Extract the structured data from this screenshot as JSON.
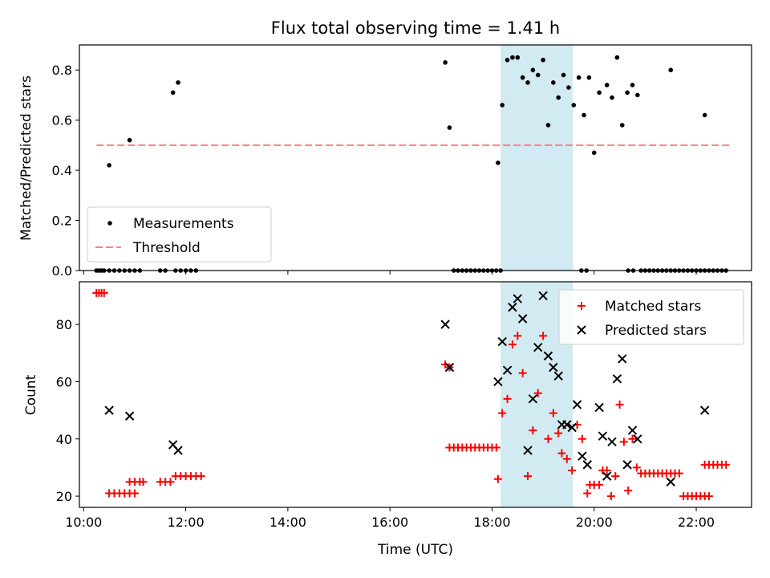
{
  "title": "Flux total observing time = 1.41 h",
  "colors": {
    "highlight": "#add8e6",
    "threshold": "#ff7f7f",
    "measurements": "#000000",
    "matched": "#ff0000",
    "predicted": "#000000"
  },
  "chart_data": [
    {
      "type": "scatter",
      "ylabel": "Matched/Predicted stars",
      "xlim": [
        "09:55",
        "23:05"
      ],
      "ylim": [
        0,
        0.9
      ],
      "yticks": [
        "0.0",
        "0.2",
        "0.4",
        "0.6",
        "0.8"
      ],
      "highlight_span": [
        "18:10",
        "19:35"
      ],
      "legend": {
        "position": "lower-left",
        "entries": [
          "Measurements",
          "Threshold"
        ]
      },
      "threshold": {
        "name": "Threshold",
        "value": 0.5,
        "x_range": [
          "10:15",
          "22:40"
        ]
      },
      "series": [
        {
          "name": "Measurements",
          "points": [
            [
              "10:15",
              0
            ],
            [
              "10:18",
              0
            ],
            [
              "10:21",
              0
            ],
            [
              "10:24",
              0
            ],
            [
              "10:30",
              0
            ],
            [
              "10:36",
              0
            ],
            [
              "10:42",
              0
            ],
            [
              "10:48",
              0
            ],
            [
              "10:54",
              0
            ],
            [
              "11:00",
              0
            ],
            [
              "11:06",
              0
            ],
            [
              "11:30",
              0
            ],
            [
              "11:36",
              0
            ],
            [
              "11:48",
              0
            ],
            [
              "11:54",
              0
            ],
            [
              "12:00",
              0
            ],
            [
              "12:06",
              0
            ],
            [
              "12:12",
              0
            ],
            [
              "10:30",
              0.42
            ],
            [
              "10:54",
              0.52
            ],
            [
              "11:45",
              0.71
            ],
            [
              "11:51",
              0.75
            ],
            [
              "17:05",
              0.83
            ],
            [
              "17:10",
              0.57
            ],
            [
              "17:15",
              0
            ],
            [
              "17:20",
              0
            ],
            [
              "17:25",
              0
            ],
            [
              "17:30",
              0
            ],
            [
              "17:35",
              0
            ],
            [
              "17:40",
              0
            ],
            [
              "17:45",
              0
            ],
            [
              "17:50",
              0
            ],
            [
              "17:55",
              0
            ],
            [
              "18:00",
              0
            ],
            [
              "18:05",
              0
            ],
            [
              "18:10",
              0
            ],
            [
              "18:07",
              0.43
            ],
            [
              "18:12",
              0.66
            ],
            [
              "18:18",
              0.84
            ],
            [
              "18:24",
              0.85
            ],
            [
              "18:30",
              0.85
            ],
            [
              "18:36",
              0.77
            ],
            [
              "18:42",
              0.75
            ],
            [
              "18:48",
              0.8
            ],
            [
              "18:54",
              0.78
            ],
            [
              "19:00",
              0.84
            ],
            [
              "19:06",
              0.58
            ],
            [
              "19:12",
              0.75
            ],
            [
              "19:18",
              0.69
            ],
            [
              "19:24",
              0.78
            ],
            [
              "19:30",
              0.73
            ],
            [
              "19:36",
              0.66
            ],
            [
              "19:42",
              0.77
            ],
            [
              "19:48",
              0.62
            ],
            [
              "19:54",
              0.77
            ],
            [
              "19:45",
              0
            ],
            [
              "19:51",
              0
            ],
            [
              "20:00",
              0.47
            ],
            [
              "20:06",
              0.71
            ],
            [
              "20:15",
              0.74
            ],
            [
              "20:21",
              0.69
            ],
            [
              "20:27",
              0.85
            ],
            [
              "20:33",
              0.58
            ],
            [
              "20:39",
              0.71
            ],
            [
              "20:45",
              0.74
            ],
            [
              "20:51",
              0.7
            ],
            [
              "20:40",
              0
            ],
            [
              "20:46",
              0
            ],
            [
              "20:55",
              0
            ],
            [
              "21:00",
              0
            ],
            [
              "21:05",
              0
            ],
            [
              "21:10",
              0
            ],
            [
              "21:15",
              0
            ],
            [
              "21:20",
              0
            ],
            [
              "21:25",
              0
            ],
            [
              "21:30",
              0
            ],
            [
              "21:35",
              0
            ],
            [
              "21:40",
              0
            ],
            [
              "21:45",
              0
            ],
            [
              "21:50",
              0
            ],
            [
              "21:55",
              0
            ],
            [
              "22:00",
              0
            ],
            [
              "22:05",
              0
            ],
            [
              "22:10",
              0
            ],
            [
              "22:15",
              0
            ],
            [
              "22:20",
              0
            ],
            [
              "22:25",
              0
            ],
            [
              "22:30",
              0
            ],
            [
              "22:35",
              0
            ],
            [
              "21:30",
              0.8
            ],
            [
              "22:10",
              0.62
            ]
          ]
        }
      ]
    },
    {
      "type": "scatter",
      "xlabel": "Time (UTC)",
      "ylabel": "Count",
      "xlim": [
        "09:55",
        "23:05"
      ],
      "ylim": [
        16.1,
        94.9
      ],
      "xticks": [
        "10:00",
        "12:00",
        "14:00",
        "16:00",
        "18:00",
        "20:00",
        "22:00"
      ],
      "yticks": [
        "20",
        "40",
        "60",
        "80"
      ],
      "highlight_span": [
        "18:10",
        "19:35"
      ],
      "legend": {
        "position": "top-right",
        "entries": [
          "Matched stars",
          "Predicted stars"
        ]
      },
      "series": [
        {
          "name": "Matched stars",
          "marker": "plus",
          "points": [
            [
              "10:15",
              91
            ],
            [
              "10:18",
              91
            ],
            [
              "10:21",
              91
            ],
            [
              "10:24",
              91
            ],
            [
              "10:30",
              21
            ],
            [
              "10:36",
              21
            ],
            [
              "10:42",
              21
            ],
            [
              "10:48",
              21
            ],
            [
              "10:54",
              21
            ],
            [
              "11:00",
              21
            ],
            [
              "10:54",
              25
            ],
            [
              "11:00",
              25
            ],
            [
              "11:06",
              25
            ],
            [
              "11:10",
              25
            ],
            [
              "11:30",
              25
            ],
            [
              "11:36",
              25
            ],
            [
              "11:42",
              25
            ],
            [
              "11:48",
              27
            ],
            [
              "11:54",
              27
            ],
            [
              "12:00",
              27
            ],
            [
              "12:06",
              27
            ],
            [
              "12:12",
              27
            ],
            [
              "12:18",
              27
            ],
            [
              "17:05",
              66
            ],
            [
              "17:10",
              65
            ],
            [
              "17:10",
              37
            ],
            [
              "17:15",
              37
            ],
            [
              "17:20",
              37
            ],
            [
              "17:25",
              37
            ],
            [
              "17:30",
              37
            ],
            [
              "17:35",
              37
            ],
            [
              "17:40",
              37
            ],
            [
              "17:45",
              37
            ],
            [
              "17:50",
              37
            ],
            [
              "17:55",
              37
            ],
            [
              "18:00",
              37
            ],
            [
              "18:05",
              37
            ],
            [
              "18:07",
              26
            ],
            [
              "18:12",
              49
            ],
            [
              "18:18",
              54
            ],
            [
              "18:24",
              73
            ],
            [
              "18:30",
              76
            ],
            [
              "18:36",
              63
            ],
            [
              "18:42",
              27
            ],
            [
              "18:48",
              43
            ],
            [
              "18:54",
              56
            ],
            [
              "19:00",
              76
            ],
            [
              "19:06",
              40
            ],
            [
              "19:12",
              49
            ],
            [
              "19:18",
              42
            ],
            [
              "19:22",
              35
            ],
            [
              "19:28",
              33
            ],
            [
              "19:34",
              29
            ],
            [
              "19:40",
              45
            ],
            [
              "19:46",
              40
            ],
            [
              "19:52",
              21
            ],
            [
              "19:55",
              24
            ],
            [
              "20:00",
              24
            ],
            [
              "20:06",
              24
            ],
            [
              "20:10",
              29
            ],
            [
              "20:15",
              29
            ],
            [
              "20:20",
              20
            ],
            [
              "20:25",
              27
            ],
            [
              "20:30",
              52
            ],
            [
              "20:35",
              39
            ],
            [
              "20:40",
              22
            ],
            [
              "20:45",
              40
            ],
            [
              "20:50",
              30
            ],
            [
              "20:55",
              28
            ],
            [
              "21:00",
              28
            ],
            [
              "21:05",
              28
            ],
            [
              "21:10",
              28
            ],
            [
              "21:15",
              28
            ],
            [
              "21:20",
              28
            ],
            [
              "21:25",
              28
            ],
            [
              "21:30",
              28
            ],
            [
              "21:35",
              28
            ],
            [
              "21:40",
              28
            ],
            [
              "21:45",
              20
            ],
            [
              "21:50",
              20
            ],
            [
              "21:55",
              20
            ],
            [
              "22:00",
              20
            ],
            [
              "22:05",
              20
            ],
            [
              "22:10",
              20
            ],
            [
              "22:15",
              20
            ],
            [
              "22:10",
              31
            ],
            [
              "22:15",
              31
            ],
            [
              "22:20",
              31
            ],
            [
              "22:25",
              31
            ],
            [
              "22:30",
              31
            ],
            [
              "22:35",
              31
            ]
          ]
        },
        {
          "name": "Predicted stars",
          "marker": "x",
          "points": [
            [
              "10:30",
              50
            ],
            [
              "10:54",
              48
            ],
            [
              "11:45",
              38
            ],
            [
              "11:51",
              36
            ],
            [
              "17:05",
              80
            ],
            [
              "17:10",
              65
            ],
            [
              "18:07",
              60
            ],
            [
              "18:12",
              74
            ],
            [
              "18:18",
              64
            ],
            [
              "18:24",
              86
            ],
            [
              "18:30",
              89
            ],
            [
              "18:36",
              82
            ],
            [
              "18:42",
              36
            ],
            [
              "18:48",
              54
            ],
            [
              "18:54",
              72
            ],
            [
              "19:00",
              90
            ],
            [
              "19:06",
              69
            ],
            [
              "19:12",
              65
            ],
            [
              "19:18",
              62
            ],
            [
              "19:22",
              45
            ],
            [
              "19:28",
              45
            ],
            [
              "19:34",
              44
            ],
            [
              "19:40",
              52
            ],
            [
              "19:46",
              34
            ],
            [
              "19:52",
              31
            ],
            [
              "20:06",
              51
            ],
            [
              "20:10",
              41
            ],
            [
              "20:15",
              27
            ],
            [
              "20:21",
              39
            ],
            [
              "20:27",
              61
            ],
            [
              "20:33",
              68
            ],
            [
              "20:39",
              31
            ],
            [
              "20:45",
              43
            ],
            [
              "20:51",
              40
            ],
            [
              "21:30",
              25
            ],
            [
              "22:10",
              50
            ]
          ]
        }
      ]
    }
  ]
}
